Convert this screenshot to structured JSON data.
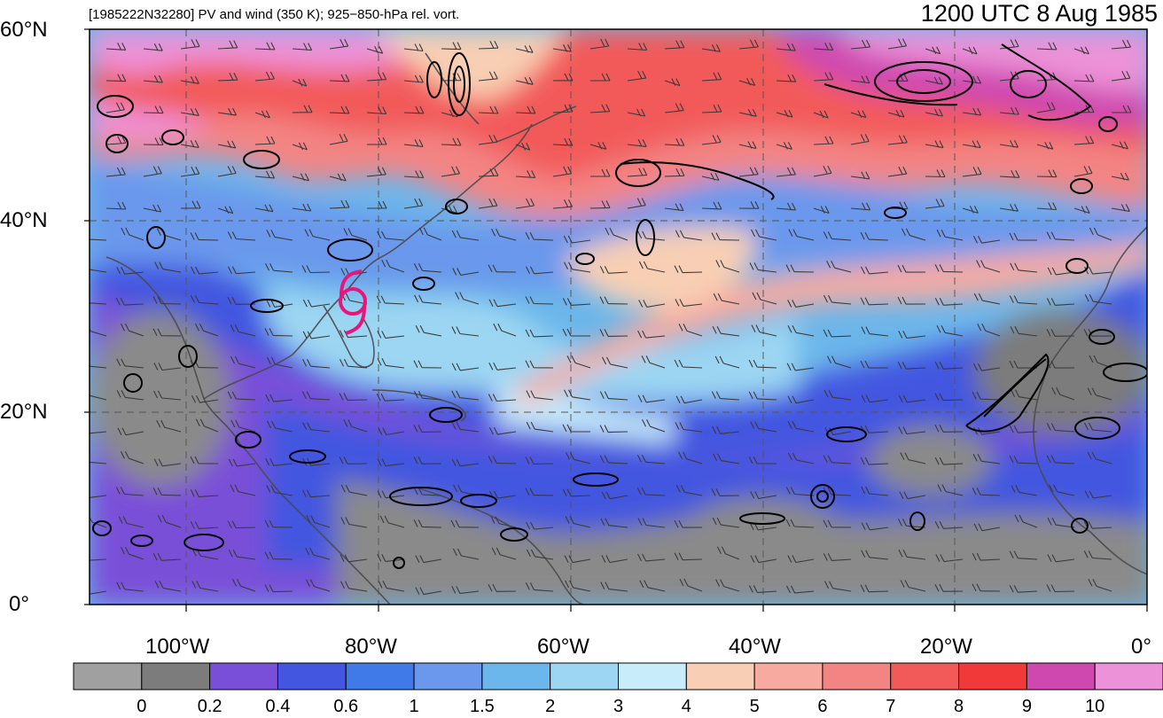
{
  "header": {
    "left_text": "[1985222N32280] PV and wind (350 K); 925−850-hPa rel. vort.",
    "right_text": "1200 UTC 8 Aug 1985"
  },
  "map": {
    "lat_labels": [
      "60°N",
      "40°N",
      "20°N",
      "0°"
    ],
    "lon_labels": [
      "100°W",
      "80°W",
      "60°W",
      "40°W",
      "20°W",
      "0°"
    ],
    "domain": {
      "lon_min": -110,
      "lon_max": 0,
      "lat_min": 0,
      "lat_max": 60
    },
    "grid": "dashed, every 20°",
    "storm_marker": {
      "name": "tropical-cyclone-symbol",
      "lon": -81.5,
      "lat": 31.5,
      "color": "#e8157a"
    }
  },
  "colorbar": {
    "labels": [
      "0",
      "0.2",
      "0.4",
      "0.6",
      "1",
      "1.5",
      "2",
      "3",
      "4",
      "5",
      "6",
      "7",
      "8",
      "9",
      "10"
    ],
    "colors": [
      "#a0a0a0",
      "#7c7c7c",
      "#7a4fd8",
      "#4356e0",
      "#3f7ae8",
      "#6b98ec",
      "#6bb6ea",
      "#9cd6f2",
      "#c8ecfa",
      "#f8cfb4",
      "#f6aaa0",
      "#f38484",
      "#f25a5a",
      "#f03a3a",
      "#cf48b0",
      "#ec92d8"
    ]
  }
}
